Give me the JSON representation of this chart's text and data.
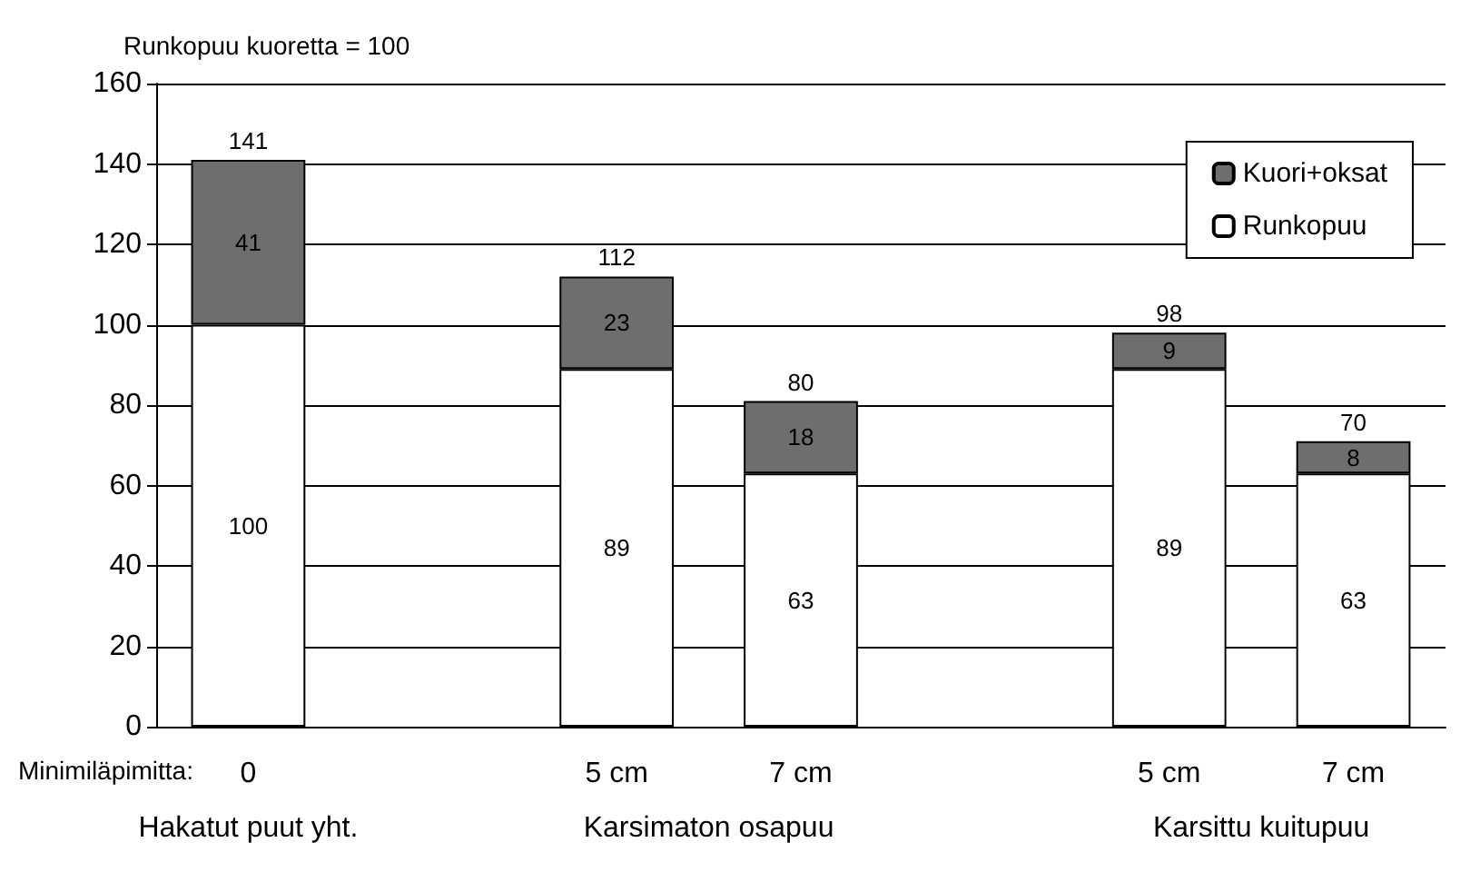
{
  "chart_data": {
    "type": "bar",
    "stacked": true,
    "categories": [
      "0",
      null,
      "5 cm",
      "7 cm",
      null,
      "5 cm",
      "7 cm"
    ],
    "series": [
      {
        "name": "Runkopuu",
        "color": "#ffffff",
        "values": [
          100,
          null,
          89,
          63,
          null,
          89,
          63
        ]
      },
      {
        "name": "Kuori+oksat",
        "color": "#6e6e6e",
        "values": [
          41,
          null,
          23,
          18,
          null,
          9,
          8
        ]
      }
    ],
    "totals": [
      "141",
      null,
      "112",
      "80",
      null,
      "98",
      "70"
    ],
    "data_labels": true,
    "ylim": [
      0,
      160
    ],
    "yticks": [
      0,
      20,
      40,
      60,
      80,
      100,
      120,
      140,
      160
    ],
    "grid": "y",
    "legend": "top right",
    "annotations": [
      "Runkopuu kuoretta = 100",
      "Minimiläpimitta:",
      "Hakatut puut yht.",
      "Karsimaton osapuu",
      "Karsittu kuitupuu"
    ]
  }
}
